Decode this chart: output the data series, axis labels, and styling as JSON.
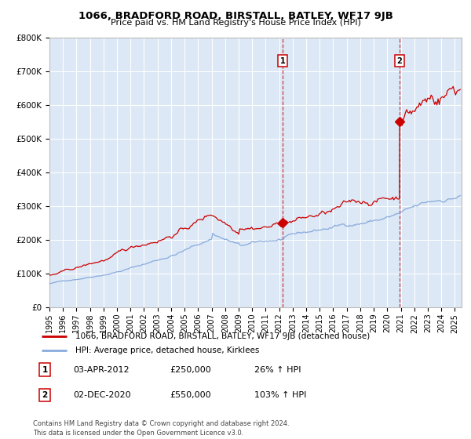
{
  "title": "1066, BRADFORD ROAD, BIRSTALL, BATLEY, WF17 9JB",
  "subtitle": "Price paid vs. HM Land Registry's House Price Index (HPI)",
  "background_color": "#ffffff",
  "plot_bg_color": "#dce8f5",
  "grid_color": "#ffffff",
  "red_line_color": "#cc0000",
  "blue_line_color": "#88aadd",
  "ann1_x": 2012.25,
  "ann1_price": 250000,
  "ann1_date": "03-APR-2012",
  "ann1_price_str": "£250,000",
  "ann1_pct": "26% ↑ HPI",
  "ann2_x": 2020.917,
  "ann2_price": 550000,
  "ann2_date": "02-DEC-2020",
  "ann2_price_str": "£550,000",
  "ann2_pct": "103% ↑ HPI",
  "legend_line1": "1066, BRADFORD ROAD, BIRSTALL, BATLEY, WF17 9JB (detached house)",
  "legend_line2": "HPI: Average price, detached house, Kirklees",
  "footer": "Contains HM Land Registry data © Crown copyright and database right 2024.\nThis data is licensed under the Open Government Licence v3.0.",
  "ylim": [
    0,
    800000
  ],
  "xlim_left": 1995.0,
  "xlim_right": 2025.5,
  "yticks": [
    0,
    100000,
    200000,
    300000,
    400000,
    500000,
    600000,
    700000,
    800000
  ],
  "xticks": [
    1995,
    1996,
    1997,
    1998,
    1999,
    2000,
    2001,
    2002,
    2003,
    2004,
    2005,
    2006,
    2007,
    2008,
    2009,
    2010,
    2011,
    2012,
    2013,
    2014,
    2015,
    2016,
    2017,
    2018,
    2019,
    2020,
    2021,
    2022,
    2023,
    2024,
    2025
  ]
}
